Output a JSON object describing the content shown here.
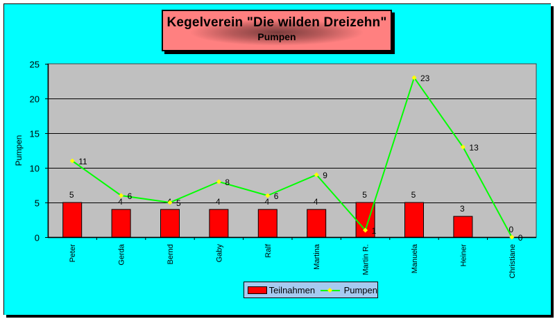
{
  "title": "Kegelverein \"Die wilden Dreizehn\"",
  "subtitle": "Pumpen",
  "legend": {
    "bar_label": "Teilnahmen",
    "line_label": "Pumpen"
  },
  "colors": {
    "background": "#00ffff",
    "plot": "#c0c0c0",
    "bar": "#ff0000",
    "line": "#00ff00",
    "marker": "#ffff00",
    "title_bg": "#ff8080",
    "legend_bg": "#a6caf0"
  },
  "chart_data": {
    "type": "bar+line",
    "title": "Kegelverein \"Die wilden Dreizehn\"",
    "subtitle": "Pumpen",
    "xlabel": "",
    "ylabel": "Pumpen",
    "ylim": [
      0,
      25
    ],
    "yticks": [
      0,
      5,
      10,
      15,
      20,
      25
    ],
    "grid": true,
    "legend_position": "bottom",
    "categories": [
      "Peter",
      "Gerda",
      "Bernd",
      "Gaby",
      "Ralf",
      "Martina",
      "Martin R.",
      "Manuela",
      "Heiner",
      "Christiane"
    ],
    "series": [
      {
        "name": "Teilnahmen",
        "type": "bar",
        "values": [
          5,
          4,
          4,
          4,
          4,
          4,
          5,
          5,
          3,
          0
        ]
      },
      {
        "name": "Pumpen",
        "type": "line",
        "values": [
          11,
          6,
          5,
          8,
          6,
          9,
          1,
          23,
          13,
          0
        ]
      }
    ]
  }
}
